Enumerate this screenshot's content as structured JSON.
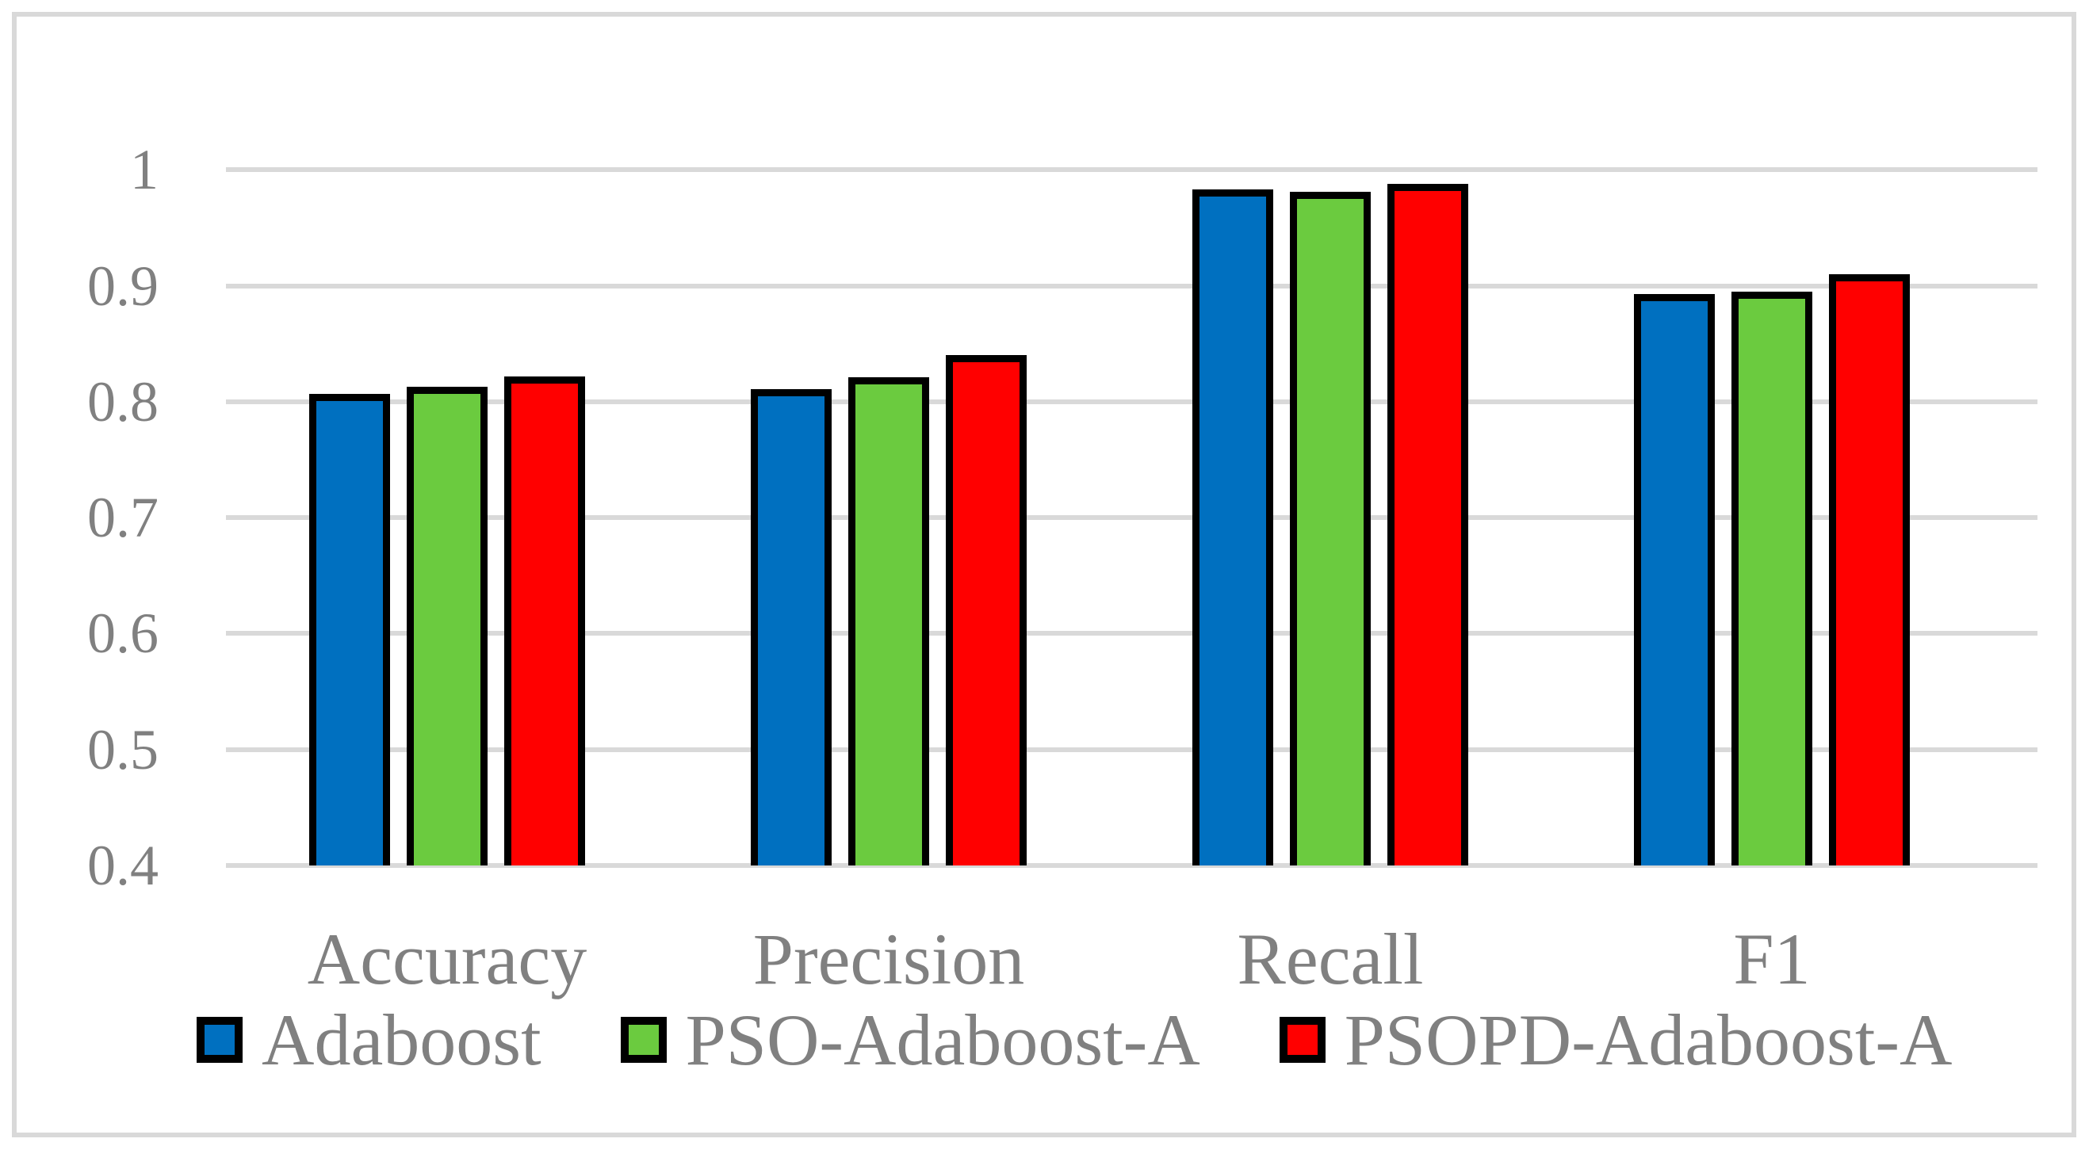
{
  "figure": {
    "background": "#FFFFFF",
    "frame_color": "#D9D9D9",
    "gridline_color": "#D9D9D9",
    "text_color": "#808080",
    "bar_border_color": "#000000"
  },
  "chart_data": {
    "type": "bar",
    "title": "",
    "xlabel": "",
    "ylabel": "",
    "categories": [
      "Accuracy",
      "Precision",
      "Recall",
      "F1"
    ],
    "series": [
      {
        "name": "Adaboost",
        "color": "#0070C0",
        "values": [
          0.807,
          0.811,
          0.983,
          0.893
        ]
      },
      {
        "name": "PSO-Adaboost-A",
        "color": "#6BCB3F",
        "values": [
          0.813,
          0.821,
          0.981,
          0.895
        ]
      },
      {
        "name": "PSOPD-Adaboost-A",
        "color": "#FF0000",
        "values": [
          0.822,
          0.84,
          0.988,
          0.91
        ]
      }
    ],
    "y_ticks": [
      "1",
      "0.9",
      "0.8",
      "0.7",
      "0.6",
      "0.5",
      "0.4"
    ],
    "y_tick_values": [
      1.0,
      0.9,
      0.8,
      0.7,
      0.6,
      0.5,
      0.4
    ],
    "ylim": [
      0.4,
      1.0
    ],
    "grid": true,
    "legend_position": "bottom"
  }
}
